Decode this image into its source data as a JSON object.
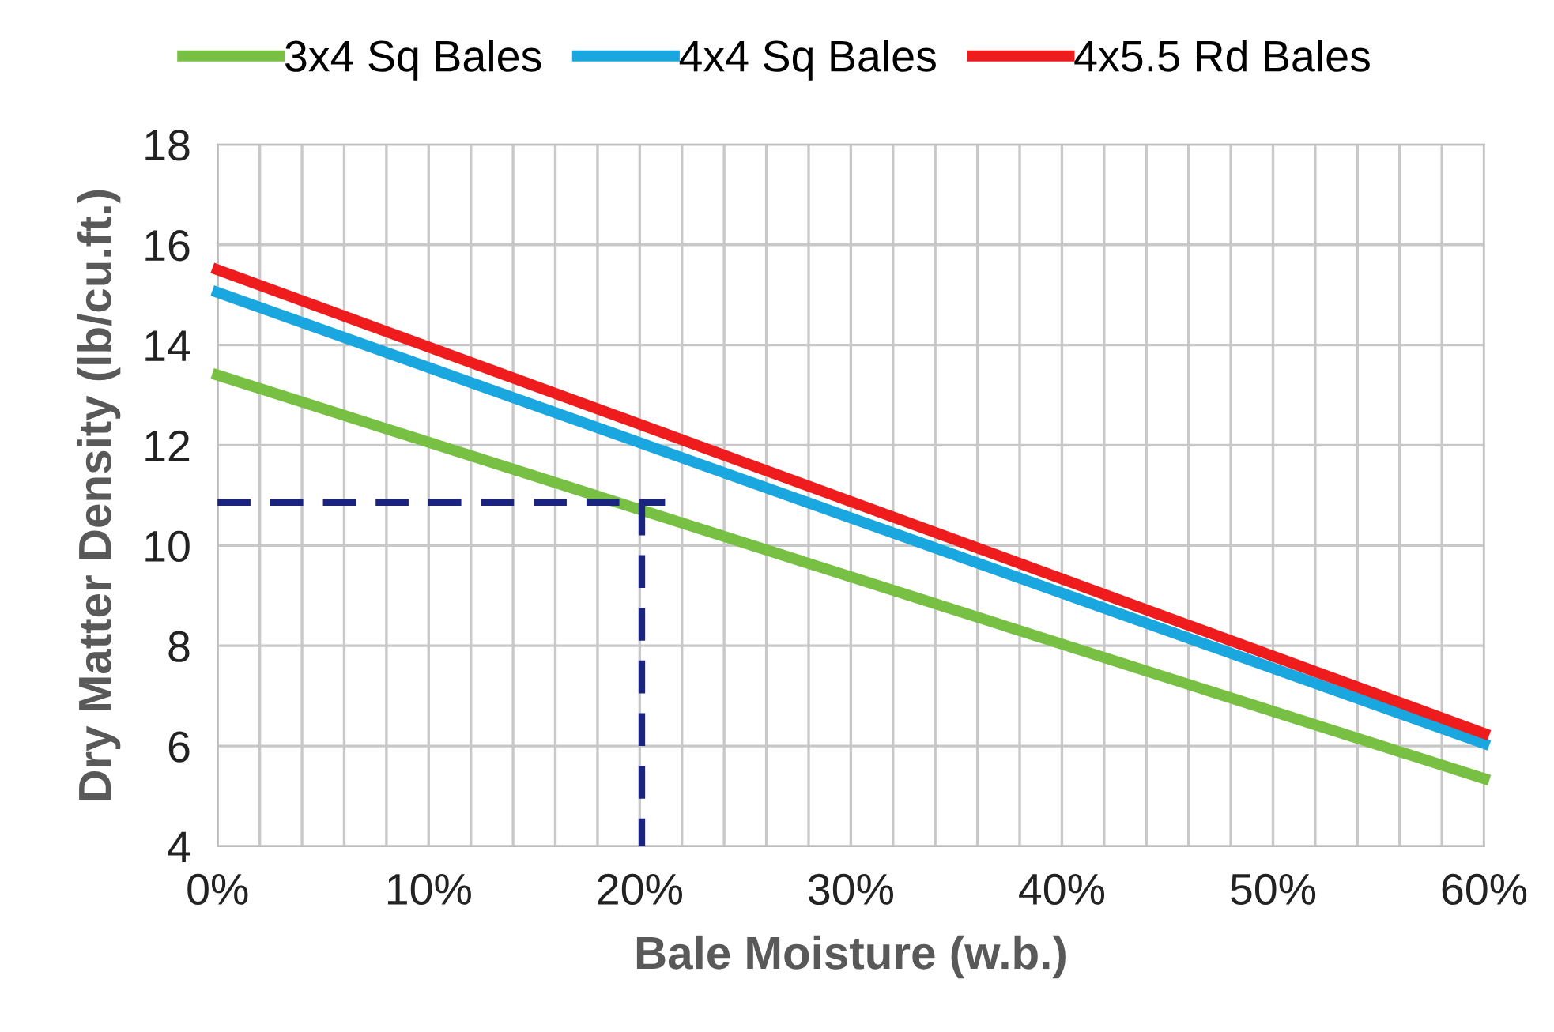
{
  "chart_data": {
    "type": "line",
    "xlabel": "Bale Moisture (w.b.)",
    "ylabel": "Dry Matter Density (lb/cu.ft.)",
    "xlim": [
      0,
      60
    ],
    "ylim": [
      4,
      18
    ],
    "xticks": [
      {
        "value": 0,
        "label": "0%"
      },
      {
        "value": 10,
        "label": "10%"
      },
      {
        "value": 20,
        "label": "20%"
      },
      {
        "value": 30,
        "label": "30%"
      },
      {
        "value": 40,
        "label": "40%"
      },
      {
        "value": 50,
        "label": "50%"
      },
      {
        "value": 60,
        "label": "60%"
      }
    ],
    "yticks": [
      4,
      6,
      8,
      10,
      12,
      14,
      16,
      18
    ],
    "grid": true,
    "legend": "top",
    "marker": "none",
    "series": [
      {
        "name": "3x4 Sq Bales",
        "color": "#77c043",
        "x": [
          0,
          60
        ],
        "values": [
          13.4,
          5.35
        ]
      },
      {
        "name": "4x4 Sq Bales",
        "color": "#1aa7e0",
        "x": [
          0,
          60
        ],
        "values": [
          15.05,
          6.05
        ]
      },
      {
        "name": "4x5.5 Rd Bales",
        "color": "#ee1c1c",
        "x": [
          0,
          60
        ],
        "values": [
          15.5,
          6.25
        ]
      },
      {
        "color": "#1a237e",
        "line_style": "dashed",
        "x": [
          0,
          21.2
        ],
        "values": [
          10.86,
          10.86
        ]
      },
      {
        "color": "#1a237e",
        "line_style": "dashed",
        "x": [
          20.1,
          20.1
        ],
        "values": [
          10.86,
          4
        ]
      }
    ]
  }
}
